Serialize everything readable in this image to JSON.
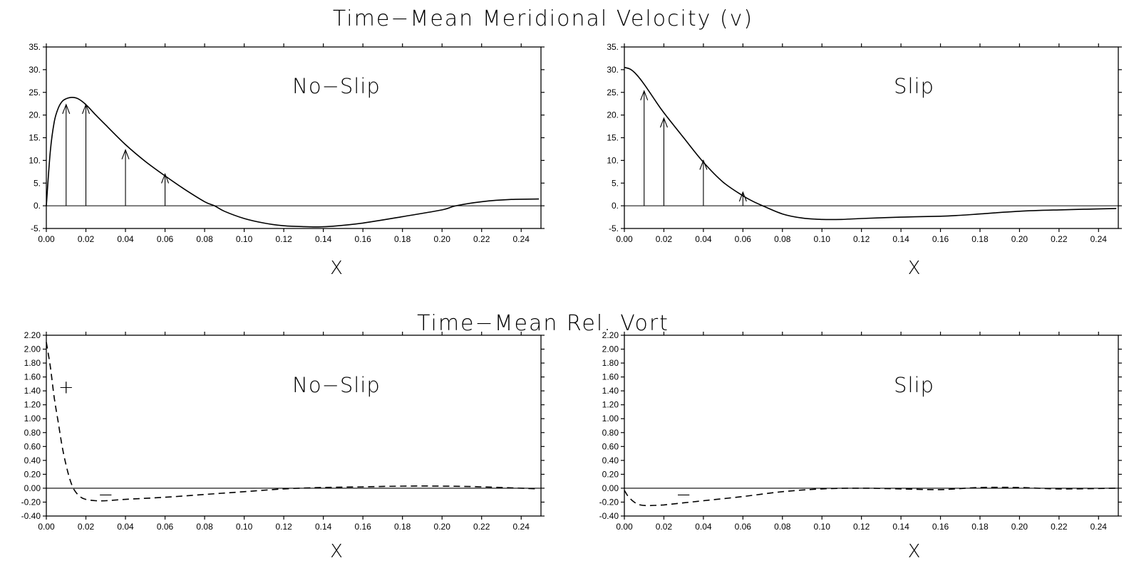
{
  "titles": {
    "top": "Time−Mean Meridional Velocity (v)",
    "bottom": "Time−Mean Rel. Vort"
  },
  "chart_data": [
    {
      "id": "v-noslip",
      "type": "line",
      "panel_label": "No−Slip",
      "xlabel": "X",
      "ylabel": "",
      "xlim": [
        0,
        0.25
      ],
      "ylim": [
        -5,
        35
      ],
      "xticks": [
        0,
        0.02,
        0.04,
        0.06,
        0.08,
        0.1,
        0.12,
        0.14,
        0.16,
        0.18,
        0.2,
        0.22,
        0.24
      ],
      "xtick_labels": [
        "0.00",
        "0.02",
        "0.04",
        "0.06",
        "0.08",
        "0.10",
        "0.12",
        "0.14",
        "0.16",
        "0.18",
        "0.20",
        "0.22",
        "0.24"
      ],
      "yticks": [
        -5,
        0,
        5,
        10,
        15,
        20,
        25,
        30,
        35
      ],
      "ytick_labels": [
        "-5.",
        "0.",
        "5.",
        "10.",
        "15.",
        "20.",
        "25.",
        "30.",
        "35."
      ],
      "line_style": "solid",
      "zero_line": true,
      "series": [
        {
          "x": [
            0,
            0.002,
            0.004,
            0.006,
            0.008,
            0.01,
            0.013,
            0.016,
            0.02,
            0.025,
            0.03,
            0.04,
            0.05,
            0.06,
            0.07,
            0.08,
            0.085,
            0.09,
            0.1,
            0.11,
            0.12,
            0.13,
            0.137,
            0.145,
            0.16,
            0.18,
            0.2,
            0.207,
            0.22,
            0.235,
            0.249
          ],
          "y": [
            0,
            12,
            18.5,
            21.5,
            23,
            23.6,
            23.9,
            23.6,
            22.3,
            20,
            17.8,
            13.5,
            9.8,
            6.6,
            3.6,
            0.9,
            0,
            -1.2,
            -2.8,
            -3.8,
            -4.4,
            -4.6,
            -4.65,
            -4.5,
            -3.8,
            -2.4,
            -0.9,
            0,
            0.9,
            1.4,
            1.5
          ]
        }
      ],
      "arrows": [
        {
          "x": 0.01,
          "y": 22.3
        },
        {
          "x": 0.02,
          "y": 22.3
        },
        {
          "x": 0.04,
          "y": 12.3
        },
        {
          "x": 0.06,
          "y": 7.0
        }
      ]
    },
    {
      "id": "v-slip",
      "type": "line",
      "panel_label": "Slip",
      "xlabel": "X",
      "ylabel": "",
      "xlim": [
        0,
        0.25
      ],
      "ylim": [
        -5,
        35
      ],
      "xticks": [
        0,
        0.02,
        0.04,
        0.06,
        0.08,
        0.1,
        0.12,
        0.14,
        0.16,
        0.18,
        0.2,
        0.22,
        0.24
      ],
      "xtick_labels": [
        "0.00",
        "0.02",
        "0.04",
        "0.06",
        "0.08",
        "0.10",
        "0.12",
        "0.14",
        "0.16",
        "0.18",
        "0.20",
        "0.22",
        "0.24"
      ],
      "yticks": [
        -5,
        0,
        5,
        10,
        15,
        20,
        25,
        30,
        35
      ],
      "ytick_labels": [
        "-5.",
        "0.",
        "5.",
        "10.",
        "15.",
        "20.",
        "25.",
        "30.",
        "35."
      ],
      "line_style": "solid",
      "zero_line": true,
      "series": [
        {
          "x": [
            0,
            0.003,
            0.006,
            0.01,
            0.015,
            0.02,
            0.03,
            0.04,
            0.05,
            0.06,
            0.065,
            0.07,
            0.08,
            0.09,
            0.1,
            0.11,
            0.12,
            0.14,
            0.16,
            0.17,
            0.18,
            0.2,
            0.22,
            0.249
          ],
          "y": [
            30.5,
            30.1,
            29,
            26.8,
            23.6,
            20.5,
            15,
            9.6,
            5.2,
            2.2,
            1,
            0,
            -1.8,
            -2.7,
            -3.0,
            -3.0,
            -2.8,
            -2.5,
            -2.3,
            -2.1,
            -1.8,
            -1.2,
            -0.9,
            -0.6
          ]
        }
      ],
      "arrows": [
        {
          "x": 0.01,
          "y": 25.3
        },
        {
          "x": 0.02,
          "y": 19.3
        },
        {
          "x": 0.04,
          "y": 10.0
        },
        {
          "x": 0.06,
          "y": 3.0
        }
      ]
    },
    {
      "id": "vort-noslip",
      "type": "line",
      "panel_label": "No−Slip",
      "xlabel": "X",
      "ylabel": "",
      "xlim": [
        0,
        0.25
      ],
      "ylim": [
        -0.4,
        2.2
      ],
      "xticks": [
        0,
        0.02,
        0.04,
        0.06,
        0.08,
        0.1,
        0.12,
        0.14,
        0.16,
        0.18,
        0.2,
        0.22,
        0.24
      ],
      "xtick_labels": [
        "0.00",
        "0.02",
        "0.04",
        "0.06",
        "0.08",
        "0.10",
        "0.12",
        "0.14",
        "0.16",
        "0.18",
        "0.20",
        "0.22",
        "0.24"
      ],
      "yticks": [
        -0.4,
        -0.2,
        0,
        0.2,
        0.4,
        0.6,
        0.8,
        1.0,
        1.2,
        1.4,
        1.6,
        1.8,
        2.0,
        2.2
      ],
      "ytick_labels": [
        "-0.40",
        "-0.20",
        "0.00",
        "0.20",
        "0.40",
        "0.60",
        "0.80",
        "1.00",
        "1.20",
        "1.40",
        "1.60",
        "1.80",
        "2.00",
        "2.20"
      ],
      "line_style": "dashed",
      "zero_line": true,
      "series": [
        {
          "x": [
            0,
            0.002,
            0.004,
            0.006,
            0.008,
            0.01,
            0.012,
            0.014,
            0.017,
            0.02,
            0.025,
            0.03,
            0.04,
            0.06,
            0.08,
            0.1,
            0.12,
            0.14,
            0.16,
            0.18,
            0.2,
            0.22,
            0.249
          ],
          "y": [
            2.1,
            1.75,
            1.3,
            0.95,
            0.6,
            0.33,
            0.12,
            -0.02,
            -0.12,
            -0.16,
            -0.18,
            -0.18,
            -0.16,
            -0.13,
            -0.09,
            -0.05,
            -0.01,
            0.01,
            0.02,
            0.03,
            0.03,
            0.02,
            -0.01
          ]
        }
      ],
      "signs": [
        {
          "text": "+",
          "x": 0.01,
          "y": 1.45
        },
        {
          "text": "−",
          "x": 0.03,
          "y": -0.1
        }
      ]
    },
    {
      "id": "vort-slip",
      "type": "line",
      "panel_label": "Slip",
      "xlabel": "X",
      "ylabel": "",
      "xlim": [
        0,
        0.25
      ],
      "ylim": [
        -0.4,
        2.2
      ],
      "xticks": [
        0,
        0.02,
        0.04,
        0.06,
        0.08,
        0.1,
        0.12,
        0.14,
        0.16,
        0.18,
        0.2,
        0.22,
        0.24
      ],
      "xtick_labels": [
        "0.00",
        "0.02",
        "0.04",
        "0.06",
        "0.08",
        "0.10",
        "0.12",
        "0.14",
        "0.16",
        "0.18",
        "0.20",
        "0.22",
        "0.24"
      ],
      "yticks": [
        -0.4,
        -0.2,
        0,
        0.2,
        0.4,
        0.6,
        0.8,
        1.0,
        1.2,
        1.4,
        1.6,
        1.8,
        2.0,
        2.2
      ],
      "ytick_labels": [
        "-0.40",
        "-0.20",
        "0.00",
        "0.20",
        "0.40",
        "0.60",
        "0.80",
        "1.00",
        "1.20",
        "1.40",
        "1.60",
        "1.80",
        "2.00",
        "2.20"
      ],
      "line_style": "dashed",
      "zero_line": true,
      "series": [
        {
          "x": [
            0,
            0.002,
            0.005,
            0.008,
            0.012,
            0.02,
            0.03,
            0.04,
            0.06,
            0.08,
            0.1,
            0.12,
            0.14,
            0.16,
            0.18,
            0.2,
            0.22,
            0.249
          ],
          "y": [
            -0.03,
            -0.12,
            -0.2,
            -0.24,
            -0.25,
            -0.24,
            -0.21,
            -0.18,
            -0.12,
            -0.05,
            -0.01,
            0,
            -0.01,
            -0.02,
            0.01,
            0.01,
            -0.01,
            0
          ]
        }
      ],
      "signs": [
        {
          "text": "−",
          "x": 0.03,
          "y": -0.1
        }
      ]
    }
  ]
}
